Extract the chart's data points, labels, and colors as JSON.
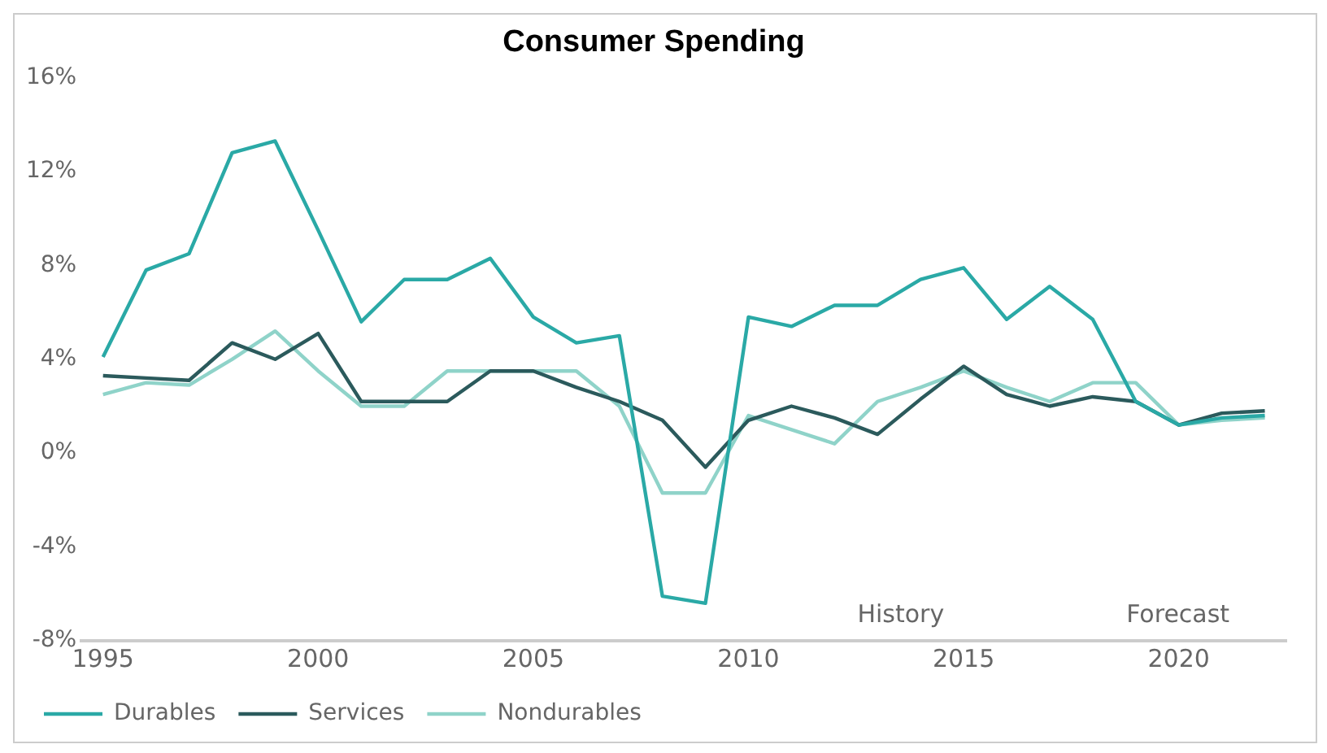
{
  "chart_data": {
    "type": "line",
    "title": "Consumer Spending",
    "x": [
      1995,
      1996,
      1997,
      1998,
      1999,
      2000,
      2001,
      2002,
      2003,
      2004,
      2005,
      2006,
      2007,
      2008,
      2009,
      2010,
      2011,
      2012,
      2013,
      2014,
      2015,
      2016,
      2017,
      2018,
      2019,
      2020,
      2021,
      2022
    ],
    "series": [
      {
        "name": "Durables",
        "color": "#2aa9a6",
        "values": [
          4.1,
          7.8,
          8.5,
          12.8,
          13.3,
          9.5,
          5.6,
          7.4,
          7.4,
          8.3,
          5.8,
          4.7,
          5.0,
          -6.1,
          -6.4,
          5.8,
          5.4,
          6.3,
          6.3,
          7.4,
          7.9,
          5.7,
          7.1,
          5.7,
          2.2,
          1.2,
          1.5,
          1.6
        ]
      },
      {
        "name": "Services",
        "color": "#2b5a5c",
        "values": [
          3.3,
          3.2,
          3.1,
          4.7,
          4.0,
          5.1,
          2.2,
          2.2,
          2.2,
          3.5,
          3.5,
          2.8,
          2.2,
          1.4,
          -0.6,
          1.4,
          2.0,
          1.5,
          0.8,
          2.3,
          3.7,
          2.5,
          2.0,
          2.4,
          2.2,
          1.2,
          1.7,
          1.8
        ]
      },
      {
        "name": "Nondurables",
        "color": "#8fd3c9",
        "values": [
          2.5,
          3.0,
          2.9,
          4.0,
          5.2,
          3.5,
          2.0,
          2.0,
          3.5,
          3.5,
          3.5,
          3.5,
          2.0,
          -1.7,
          -1.7,
          1.6,
          1.0,
          0.4,
          2.2,
          2.8,
          3.5,
          2.8,
          2.2,
          3.0,
          3.0,
          1.2,
          1.4,
          1.5
        ]
      }
    ],
    "xlim": [
      1994.5,
      2022.5
    ],
    "xticks": [
      1995,
      2000,
      2005,
      2010,
      2015,
      2020
    ],
    "ylim": [
      -8,
      16
    ],
    "yticks": [
      {
        "value": -8,
        "label": "-8%"
      },
      {
        "value": -4,
        "label": "-4%"
      },
      {
        "value": 0,
        "label": "0%"
      },
      {
        "value": 4,
        "label": "4%"
      },
      {
        "value": 8,
        "label": "8%"
      },
      {
        "value": 12,
        "label": "12%"
      },
      {
        "value": 16,
        "label": "16%"
      }
    ],
    "annotations": [
      "History",
      "Forecast"
    ],
    "grid": false,
    "legend": "bottom left",
    "marker": "none",
    "line_style": "solid"
  }
}
